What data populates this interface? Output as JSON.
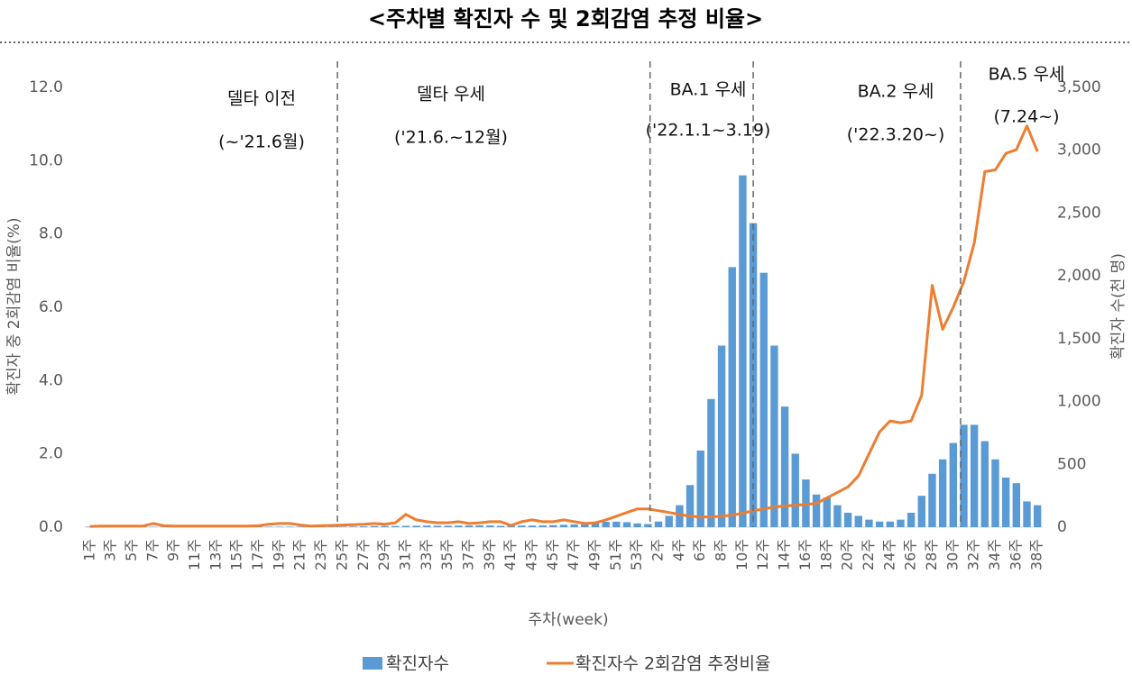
{
  "chart_data": {
    "type": "bar",
    "title": "<주차별 확진자 수 및 2회감염 추정 비율>",
    "x_label": "주차(week)",
    "y_label": "확진자 중 2회감염 비율(%)",
    "y2_label": "확진자 수(천 명)",
    "categories": [
      "1주",
      null,
      "3주",
      null,
      "5주",
      null,
      "7주",
      null,
      "9주",
      null,
      "11주",
      null,
      "13주",
      null,
      "15주",
      null,
      "17주",
      null,
      "19주",
      null,
      "21주",
      null,
      "23주",
      null,
      "25주",
      null,
      "27주",
      null,
      "29주",
      null,
      "31주",
      null,
      "33주",
      null,
      "35주",
      null,
      "37주",
      null,
      "39주",
      null,
      "41주",
      null,
      "43주",
      null,
      "45주",
      null,
      "47주",
      null,
      "49주",
      null,
      "51주",
      null,
      "53주",
      null,
      "2주",
      null,
      "4주",
      null,
      "6주",
      null,
      "8주",
      null,
      "10주",
      null,
      "12주",
      null,
      "14주",
      null,
      "16주",
      null,
      "18주",
      null,
      "20주",
      null,
      "22주",
      null,
      "24주",
      null,
      "26주",
      null,
      "28주",
      null,
      "30주",
      null,
      "32주",
      null,
      "34주",
      null,
      "36주",
      null,
      "38주"
    ],
    "series": [
      {
        "name": "확진자수",
        "type": "bar",
        "axis": "y2",
        "color": "#5b9bd5",
        "values": [
          5,
          4,
          3,
          3,
          3,
          3,
          3,
          3,
          3,
          3,
          3,
          3,
          3,
          4,
          4,
          4,
          4,
          4,
          4,
          4,
          4,
          4,
          3,
          3,
          4,
          5,
          7,
          10,
          10,
          10,
          11,
          12,
          13,
          12,
          12,
          13,
          14,
          15,
          14,
          11,
          12,
          13,
          13,
          14,
          16,
          19,
          22,
          26,
          34,
          43,
          44,
          40,
          30,
          25,
          45,
          90,
          175,
          335,
          610,
          1020,
          1445,
          2070,
          2800,
          2420,
          2025,
          1445,
          960,
          585,
          380,
          260,
          235,
          175,
          115,
          90,
          60,
          45,
          45,
          60,
          115,
          250,
          425,
          540,
          670,
          815,
          815,
          685,
          540,
          395,
          350,
          205,
          175
        ]
      },
      {
        "name": "확진자수 2회감염 추정비율",
        "type": "line",
        "axis": "y",
        "color": "#ed7d31",
        "values": [
          0.02,
          0.03,
          0.03,
          0.03,
          0.03,
          0.03,
          0.1,
          0.04,
          0.03,
          0.03,
          0.03,
          0.03,
          0.03,
          0.03,
          0.03,
          0.03,
          0.04,
          0.08,
          0.1,
          0.1,
          0.06,
          0.03,
          0.04,
          0.05,
          0.06,
          0.07,
          0.08,
          0.1,
          0.08,
          0.12,
          0.35,
          0.2,
          0.15,
          0.12,
          0.12,
          0.15,
          0.1,
          0.12,
          0.15,
          0.15,
          0.05,
          0.15,
          0.2,
          0.15,
          0.15,
          0.2,
          0.15,
          0.1,
          0.12,
          0.2,
          0.3,
          0.4,
          0.5,
          0.5,
          0.45,
          0.4,
          0.35,
          0.3,
          0.28,
          0.28,
          0.3,
          0.33,
          0.38,
          0.45,
          0.5,
          0.55,
          0.58,
          0.6,
          0.62,
          0.65,
          0.8,
          0.95,
          1.1,
          1.4,
          2.0,
          2.6,
          2.9,
          2.85,
          2.9,
          3.6,
          6.6,
          5.4,
          6.0,
          6.7,
          7.75,
          9.7,
          9.75,
          10.2,
          10.3,
          10.95,
          10.25
        ]
      }
    ],
    "ylim": [
      0,
      12
    ],
    "yticks": [
      {
        "value": 0,
        "label": "0.0"
      },
      {
        "value": 2,
        "label": "2.0"
      },
      {
        "value": 4,
        "label": "4.0"
      },
      {
        "value": 6,
        "label": "6.0"
      },
      {
        "value": 8,
        "label": "8.0"
      },
      {
        "value": 10,
        "label": "10.0"
      },
      {
        "value": 12,
        "label": "12.0"
      }
    ],
    "y2lim": [
      0,
      3500
    ],
    "y2ticks": [
      0,
      500,
      {
        "value": 1000,
        "label": "1,000"
      },
      {
        "value": 1500,
        "label": "1,500"
      },
      {
        "value": 2000,
        "label": "2,000"
      },
      {
        "value": 2500,
        "label": "2,500"
      },
      {
        "value": 3000,
        "label": "3,000"
      },
      {
        "value": 3500,
        "label": "3,500"
      }
    ],
    "annotations": [
      "델타 이전",
      "(~'21.6월)",
      "델타 우세",
      "('21.6.~12월)",
      "BA.1 우세",
      "('22.1.1~3.19)",
      "BA.2 우세",
      "('22.3.20~)",
      "BA.5 우세",
      "(7.24~)"
    ]
  }
}
